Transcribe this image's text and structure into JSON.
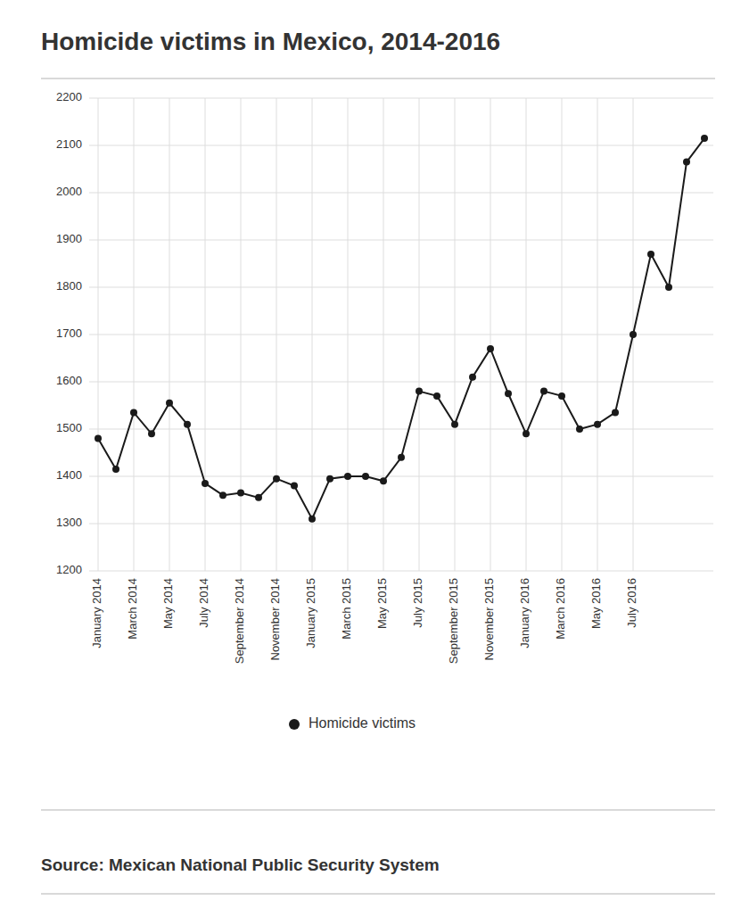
{
  "chart_data": {
    "type": "line",
    "title": "Homicide victims in Mexico, 2014-2016",
    "source": "Source: Mexican National Public Security System",
    "categories": [
      "January 2014",
      null,
      "March 2014",
      null,
      "May 2014",
      null,
      "July 2014",
      null,
      "September 2014",
      null,
      "November 2014",
      null,
      "January 2015",
      null,
      "March 2015",
      null,
      "May 2015",
      null,
      "July 2015",
      null,
      "September 2015",
      null,
      "November 2015",
      null,
      "January 2016",
      null,
      "March 2016",
      null,
      "May 2016",
      null,
      "July 2016",
      null,
      null,
      null,
      null
    ],
    "series": [
      {
        "name": "Homicide victims",
        "color": "#1a1a1a",
        "marker": "circle",
        "line_style": "solid",
        "values": [
          1480,
          1415,
          1535,
          1490,
          1555,
          1510,
          1385,
          1360,
          1365,
          1355,
          1395,
          1380,
          1310,
          1395,
          1400,
          1400,
          1390,
          1440,
          1580,
          1570,
          1510,
          1610,
          1670,
          1575,
          1490,
          1580,
          1570,
          1500,
          1510,
          1535,
          1700,
          1870,
          1800,
          2065,
          2115
        ]
      }
    ],
    "ylim": [
      1200,
      2200
    ],
    "yticks": [
      1200,
      1300,
      1400,
      1500,
      1600,
      1700,
      1800,
      1900,
      2000,
      2100,
      2200
    ],
    "grid": true,
    "legend": "bottom"
  }
}
